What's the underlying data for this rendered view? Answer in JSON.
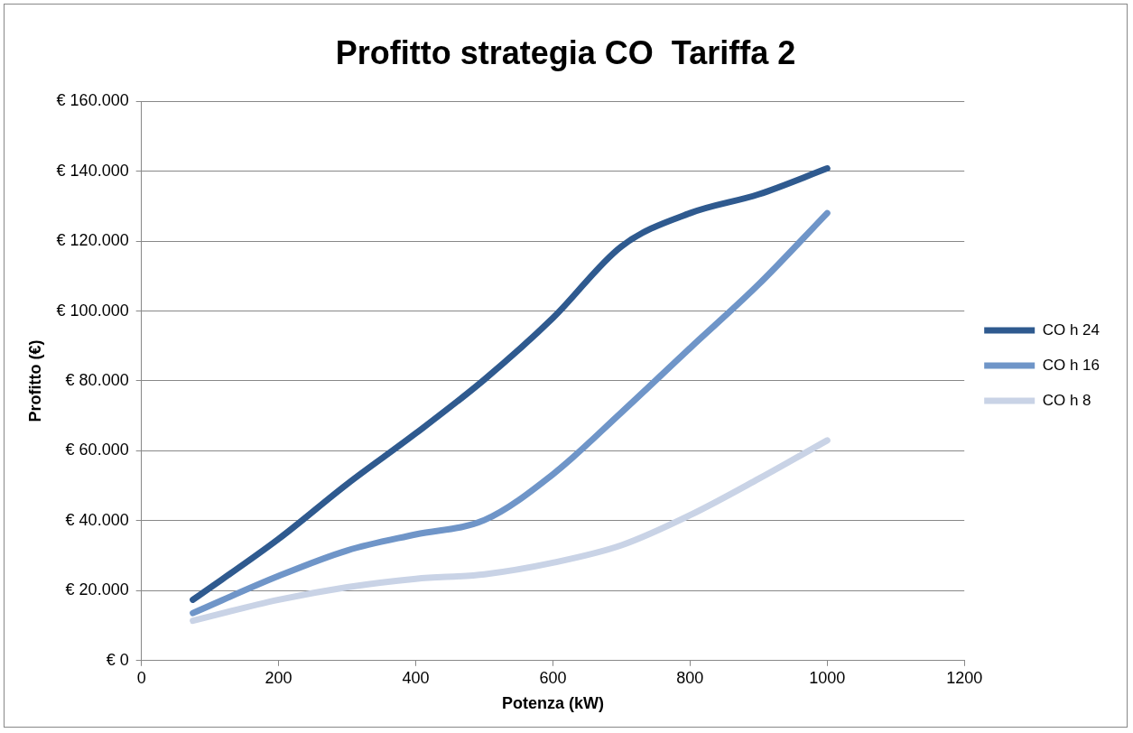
{
  "chart_data": {
    "type": "line",
    "title": "Profitto strategia CO  Tariffa 2",
    "xlabel": "Potenza (kW)",
    "ylabel": "Profitto (€)",
    "x": [
      75,
      200,
      300,
      400,
      500,
      600,
      700,
      800,
      900,
      1000
    ],
    "series": [
      {
        "name": "CO h 24",
        "color": "#2f5a8f",
        "values": [
          17400,
          34800,
          50500,
          65000,
          80400,
          98000,
          118500,
          128000,
          133400,
          140800
        ]
      },
      {
        "name": "CO h 16",
        "color": "#6f95c8",
        "values": [
          13600,
          24200,
          31500,
          36100,
          40200,
          53300,
          71000,
          89400,
          107600,
          128000
        ]
      },
      {
        "name": "CO h 8",
        "color": "#c9d3e6",
        "values": [
          11400,
          17400,
          21000,
          23400,
          24700,
          28000,
          33000,
          41600,
          52000,
          63000
        ]
      }
    ],
    "xlim": [
      0,
      1200
    ],
    "xticks": [
      0,
      200,
      400,
      600,
      800,
      1000,
      1200
    ],
    "ylim": [
      0,
      160000
    ],
    "yticks": [
      {
        "value": 0,
        "label": "€ 0"
      },
      {
        "value": 20000,
        "label": "€ 20.000"
      },
      {
        "value": 40000,
        "label": "€ 40.000"
      },
      {
        "value": 60000,
        "label": "€ 60.000"
      },
      {
        "value": 80000,
        "label": "€ 80.000"
      },
      {
        "value": 100000,
        "label": "€ 100.000"
      },
      {
        "value": 120000,
        "label": "€ 120.000"
      },
      {
        "value": 140000,
        "label": "€ 140.000"
      },
      {
        "value": 160000,
        "label": "€ 160.000"
      }
    ],
    "grid": "y",
    "legend": "right",
    "marker": "none",
    "line_style": "solid"
  }
}
